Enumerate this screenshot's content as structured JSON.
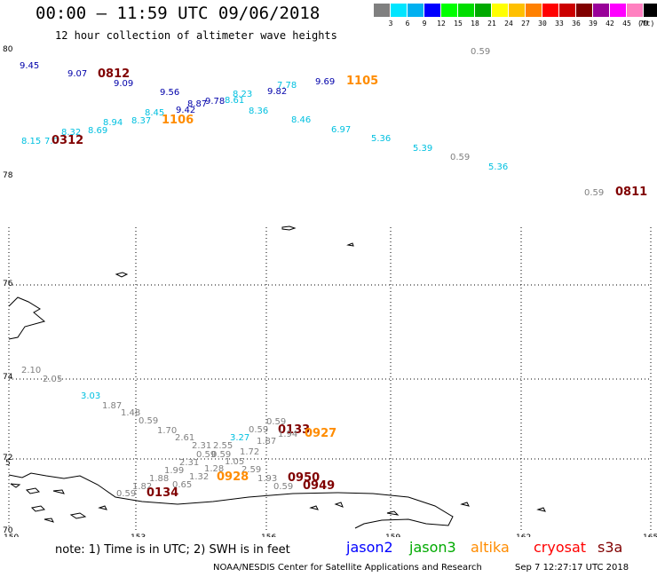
{
  "header": {
    "title": "00:00 – 11:59 UTC 09/06/2018",
    "subtitle": "12 hour collection of altimeter wave heights"
  },
  "colorbar": {
    "unit": "(ft)",
    "ticks": [
      "3",
      "6",
      "9",
      "12",
      "15",
      "18",
      "21",
      "24",
      "27",
      "30",
      "33",
      "36",
      "39",
      "42",
      "45",
      "70"
    ],
    "colors": [
      "#808080",
      "#00e5ff",
      "#00b0f0",
      "#0000ff",
      "#00ff00",
      "#00dd00",
      "#00aa00",
      "#ffff00",
      "#ffc000",
      "#ff8000",
      "#ff0000",
      "#cc0000",
      "#800000",
      "#990099",
      "#ff00ff",
      "#ff80c0",
      "#000000"
    ]
  },
  "axes": {
    "upper_lat_ticks": [
      "80",
      "78"
    ],
    "lower_lat_ticks": [
      "76",
      "74",
      "72",
      "70"
    ],
    "lon_ticks": [
      "150",
      "153",
      "156",
      "159",
      "162",
      "165"
    ],
    "left_edge_mark": "5"
  },
  "observations": {
    "upper": [
      {
        "t": "9.45",
        "c": "#0000aa"
      },
      {
        "t": "9.07",
        "c": "#0000aa"
      },
      {
        "t": "0812",
        "c": "#800000"
      },
      {
        "t": "9.09",
        "c": "#0000aa"
      },
      {
        "t": "9.56",
        "c": "#0000aa"
      },
      {
        "t": "8.87",
        "c": "#0000aa"
      },
      {
        "t": "9.78",
        "c": "#0000aa"
      },
      {
        "t": "8.61",
        "c": "#00c0e0"
      },
      {
        "t": "8.23",
        "c": "#00c0e0"
      },
      {
        "t": "9.82",
        "c": "#0000aa"
      },
      {
        "t": "7.78",
        "c": "#00c0e0"
      },
      {
        "t": "9.69",
        "c": "#0000aa"
      },
      {
        "t": "1105",
        "c": "#ff8c00"
      },
      {
        "t": "0.59",
        "c": "#808080"
      },
      {
        "t": "9.42",
        "c": "#0000aa"
      },
      {
        "t": "8.45",
        "c": "#00c0e0"
      },
      {
        "t": "8.37",
        "c": "#00c0e0"
      },
      {
        "t": "1106",
        "c": "#ff8c00"
      },
      {
        "t": "8.94",
        "c": "#00c0e0"
      },
      {
        "t": "8.69",
        "c": "#00c0e0"
      },
      {
        "t": "8.32",
        "c": "#00c0e0"
      },
      {
        "t": "8.15",
        "c": "#00c0e0"
      },
      {
        "t": "7.0",
        "c": "#00c0e0"
      },
      {
        "t": "0312",
        "c": "#800000"
      },
      {
        "t": "8.36",
        "c": "#00c0e0"
      },
      {
        "t": "8.46",
        "c": "#00c0e0"
      },
      {
        "t": "6.97",
        "c": "#00c0e0"
      },
      {
        "t": "5.36",
        "c": "#00c0e0"
      },
      {
        "t": "5.39",
        "c": "#00c0e0"
      },
      {
        "t": "0.59",
        "c": "#808080"
      },
      {
        "t": "5.36",
        "c": "#00c0e0"
      },
      {
        "t": "0.59",
        "c": "#808080"
      },
      {
        "t": "0811",
        "c": "#800000"
      }
    ],
    "lower": [
      {
        "t": "2.10",
        "c": "#808080"
      },
      {
        "t": "2.05",
        "c": "#808080"
      },
      {
        "t": "3.03",
        "c": "#00c0e0"
      },
      {
        "t": "1.87",
        "c": "#808080"
      },
      {
        "t": "1.48",
        "c": "#808080"
      },
      {
        "t": "0.59",
        "c": "#808080"
      },
      {
        "t": "1.70",
        "c": "#808080"
      },
      {
        "t": "2.61",
        "c": "#808080"
      },
      {
        "t": "0.59",
        "c": "#808080"
      },
      {
        "t": "0133",
        "c": "#800000"
      },
      {
        "t": "0927",
        "c": "#ff8c00"
      },
      {
        "t": "0.59",
        "c": "#808080"
      },
      {
        "t": "1.94",
        "c": "#808080"
      },
      {
        "t": "3.27",
        "c": "#00c0e0"
      },
      {
        "t": "1.87",
        "c": "#808080"
      },
      {
        "t": "2.31",
        "c": "#808080"
      },
      {
        "t": "2.55",
        "c": "#808080"
      },
      {
        "t": "0.59",
        "c": "#808080"
      },
      {
        "t": "0.59",
        "c": "#808080"
      },
      {
        "t": "1.72",
        "c": "#808080"
      },
      {
        "t": "2.31",
        "c": "#808080"
      },
      {
        "t": "1.05",
        "c": "#808080"
      },
      {
        "t": "1.99",
        "c": "#808080"
      },
      {
        "t": "1.28",
        "c": "#808080"
      },
      {
        "t": "2.59",
        "c": "#808080"
      },
      {
        "t": "1.88",
        "c": "#808080"
      },
      {
        "t": "1.32",
        "c": "#808080"
      },
      {
        "t": "0928",
        "c": "#ff8c00"
      },
      {
        "t": "1.93",
        "c": "#808080"
      },
      {
        "t": "0950",
        "c": "#800000"
      },
      {
        "t": "1.82",
        "c": "#808080"
      },
      {
        "t": "0.65",
        "c": "#808080"
      },
      {
        "t": "0.59",
        "c": "#808080"
      },
      {
        "t": "0949",
        "c": "#800000"
      },
      {
        "t": "0.59",
        "c": "#808080"
      },
      {
        "t": "0134",
        "c": "#800000"
      }
    ]
  },
  "legend": {
    "note": "note: 1) Time is in UTC; 2) SWH is in feet",
    "satellites": [
      {
        "name": "jason2",
        "color": "#0000ff"
      },
      {
        "name": "jason3",
        "color": "#00aa00"
      },
      {
        "name": "altika",
        "color": "#ff8c00"
      },
      {
        "name": "cryosat",
        "color": "#ff0000"
      },
      {
        "name": "s3a",
        "color": "#800000"
      }
    ]
  },
  "footer": {
    "credit": "NOAA/NESDIS Center for Satellite Applications and Research",
    "timestamp": "Sep  7 12:27:17 UTC 2018"
  }
}
